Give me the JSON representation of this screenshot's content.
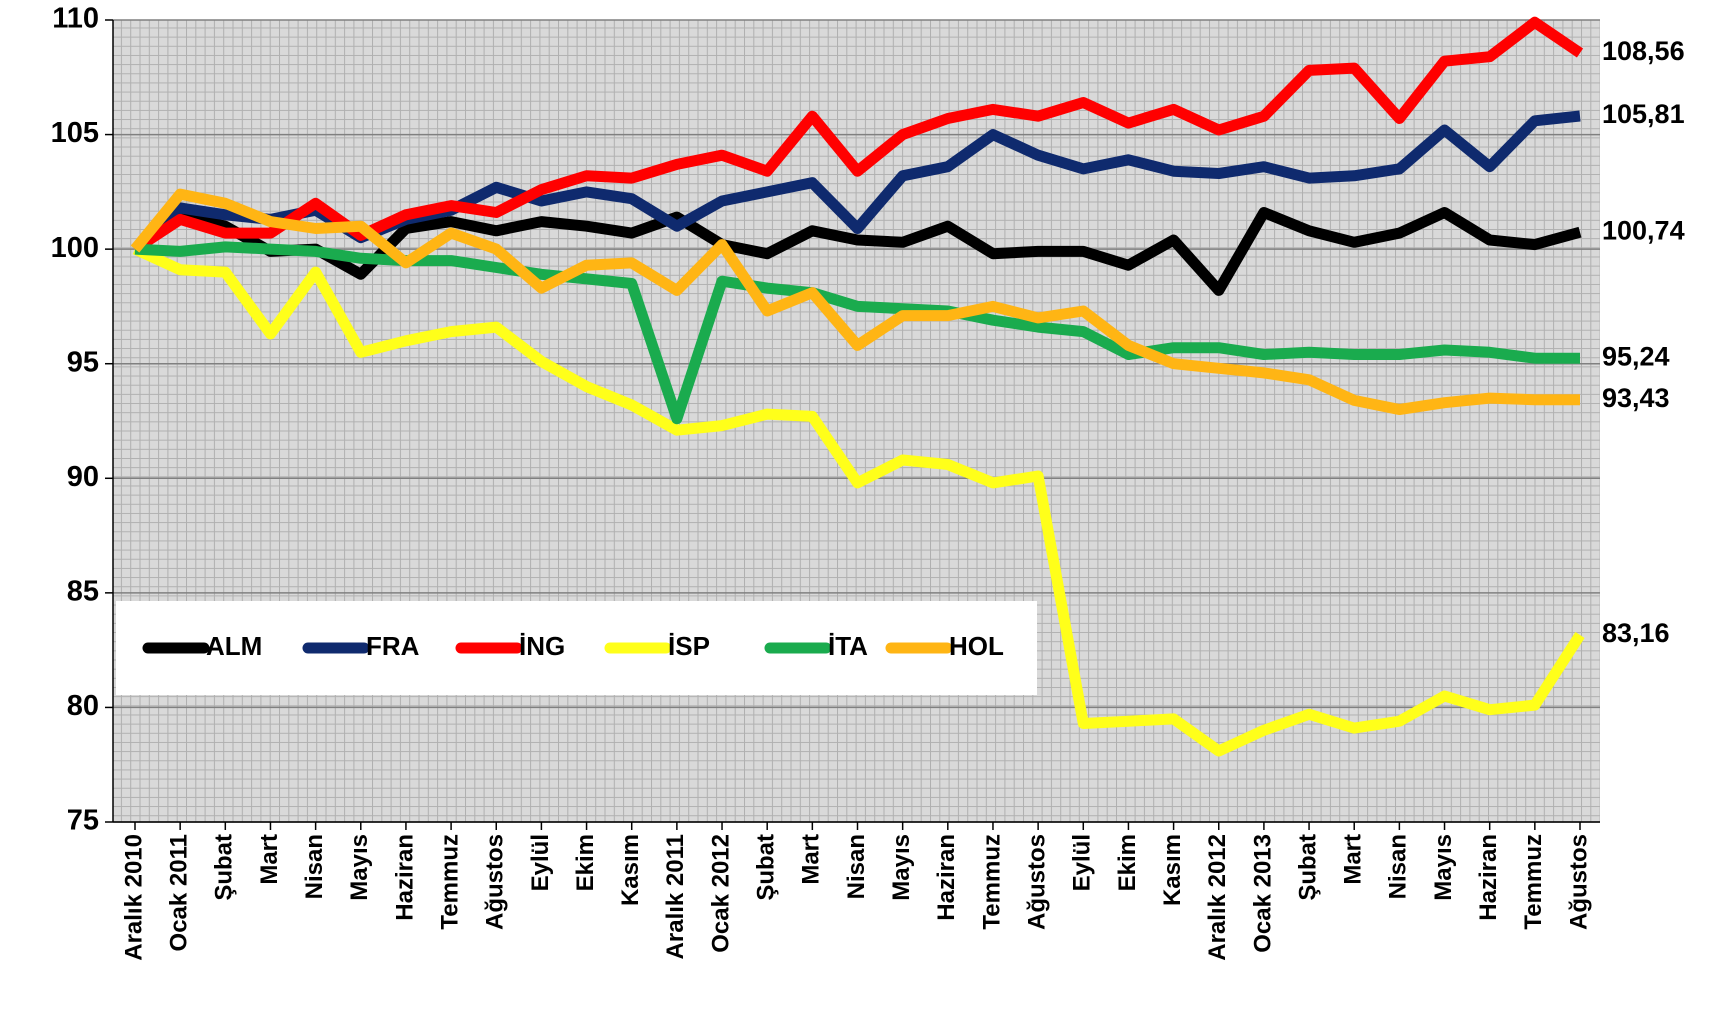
{
  "chart_data": {
    "type": "line",
    "categories": [
      "Aralık 2010",
      "Ocak 2011",
      "Şubat",
      "Mart",
      "Nisan",
      "Mayıs",
      "Haziran",
      "Temmuz",
      "Ağustos",
      "Eylül",
      "Ekim",
      "Kasım",
      "Aralık 2011",
      "Ocak 2012",
      "Şubat",
      "Mart",
      "Nisan",
      "Mayıs",
      "Haziran",
      "Temmuz",
      "Ağustos",
      "Eylül",
      "Ekim",
      "Kasım",
      "Aralık 2012",
      "Ocak 2013",
      "Şubat",
      "Mart",
      "Nisan",
      "Mayıs",
      "Haziran",
      "Temmuz",
      "Ağustos"
    ],
    "series": [
      {
        "name": "ALM",
        "color": "#000000",
        "values": [
          100,
          101.5,
          101,
          99.9,
          100,
          98.9,
          100.9,
          101.2,
          100.8,
          101.2,
          101,
          100.7,
          101.4,
          100.2,
          99.8,
          100.8,
          100.4,
          100.3,
          101,
          99.8,
          99.9,
          99.9,
          99.3,
          100.4,
          98.2,
          101.6,
          100.8,
          100.3,
          100.7,
          101.6,
          100.4,
          100.2,
          100.74
        ],
        "value_labels": [
          null,
          null,
          null,
          null,
          null,
          null,
          null,
          null,
          null,
          null,
          null,
          null,
          null,
          null,
          null,
          null,
          null,
          null,
          null,
          null,
          null,
          null,
          null,
          null,
          null,
          null,
          null,
          null,
          null,
          null,
          null,
          null,
          "100,74"
        ]
      },
      {
        "name": "FRA",
        "color": "#0f2a6e",
        "values": [
          100,
          101.8,
          101.5,
          101.3,
          101.7,
          100.5,
          101.3,
          101.7,
          102.7,
          102.1,
          102.5,
          102.2,
          101,
          102.1,
          102.5,
          102.9,
          100.9,
          103.2,
          103.6,
          105,
          104.1,
          103.5,
          103.9,
          103.4,
          103.3,
          103.6,
          103.1,
          103.2,
          103.5,
          105.2,
          103.6,
          105.6,
          105.81
        ],
        "value_labels": [
          null,
          null,
          null,
          null,
          null,
          null,
          null,
          null,
          null,
          null,
          null,
          null,
          null,
          null,
          null,
          null,
          null,
          null,
          null,
          null,
          null,
          null,
          null,
          null,
          null,
          null,
          null,
          null,
          null,
          null,
          null,
          null,
          "105,81"
        ]
      },
      {
        "name": "İNG",
        "color": "#ff0000",
        "values": [
          100,
          101.3,
          100.7,
          100.7,
          102,
          100.6,
          101.5,
          101.9,
          101.6,
          102.6,
          103.2,
          103.1,
          103.7,
          104.1,
          103.4,
          105.8,
          103.4,
          105,
          105.7,
          106.1,
          105.8,
          106.4,
          105.5,
          106.1,
          105.2,
          105.8,
          107.8,
          107.9,
          105.7,
          108.2,
          108.4,
          109.9,
          108.56
        ],
        "value_labels": [
          null,
          null,
          null,
          null,
          null,
          null,
          null,
          null,
          null,
          null,
          null,
          null,
          null,
          null,
          null,
          null,
          null,
          null,
          null,
          null,
          null,
          null,
          null,
          null,
          null,
          null,
          null,
          null,
          null,
          null,
          null,
          null,
          "108,56"
        ]
      },
      {
        "name": "İSP",
        "color": "#ffff1a",
        "values": [
          100,
          99.1,
          99,
          96.3,
          99,
          95.5,
          96,
          96.4,
          96.6,
          95.1,
          94,
          93.2,
          92.1,
          92.3,
          92.8,
          92.7,
          89.8,
          90.8,
          90.6,
          89.8,
          90.1,
          79.3,
          79.4,
          79.5,
          78.1,
          79,
          79.7,
          79.1,
          79.4,
          80.5,
          79.9,
          80.1,
          83.16
        ],
        "value_labels": [
          null,
          null,
          null,
          null,
          null,
          null,
          null,
          null,
          null,
          null,
          null,
          null,
          null,
          null,
          null,
          null,
          null,
          null,
          null,
          null,
          null,
          null,
          null,
          null,
          null,
          null,
          null,
          null,
          null,
          null,
          null,
          null,
          "83,16"
        ]
      },
      {
        "name": "İTA",
        "color": "#1aab4e",
        "values": [
          100,
          99.9,
          100.1,
          100,
          99.9,
          99.6,
          99.5,
          99.5,
          99.2,
          98.9,
          98.7,
          98.5,
          92.6,
          98.6,
          98.3,
          98.1,
          97.5,
          97.4,
          97.3,
          96.9,
          96.6,
          96.4,
          95.4,
          95.7,
          95.7,
          95.4,
          95.5,
          95.4,
          95.4,
          95.6,
          95.5,
          95.24,
          95.24
        ],
        "value_labels": [
          null,
          null,
          null,
          null,
          null,
          null,
          null,
          null,
          null,
          null,
          null,
          null,
          null,
          null,
          null,
          null,
          null,
          null,
          null,
          null,
          null,
          null,
          null,
          null,
          null,
          null,
          null,
          null,
          null,
          null,
          null,
          null,
          "95,24"
        ]
      },
      {
        "name": "HOL",
        "color": "#ffb514",
        "values": [
          100,
          102.4,
          102,
          101.2,
          100.9,
          101,
          99.4,
          100.7,
          100,
          98.3,
          99.3,
          99.4,
          98.2,
          100.2,
          97.3,
          98.1,
          95.8,
          97.1,
          97.1,
          97.5,
          97,
          97.3,
          95.8,
          95,
          94.8,
          94.6,
          94.3,
          93.4,
          93,
          93.3,
          93.5,
          93.43,
          93.43
        ],
        "value_labels": [
          null,
          null,
          null,
          null,
          null,
          null,
          null,
          null,
          null,
          null,
          null,
          null,
          null,
          null,
          null,
          null,
          null,
          null,
          null,
          null,
          null,
          null,
          null,
          null,
          null,
          null,
          null,
          null,
          null,
          null,
          null,
          null,
          "93,43"
        ]
      }
    ],
    "ylim": [
      75,
      110
    ],
    "yticks": [
      75,
      80,
      85,
      90,
      95,
      100,
      105,
      110
    ],
    "grid": true,
    "legend": "lower left"
  }
}
